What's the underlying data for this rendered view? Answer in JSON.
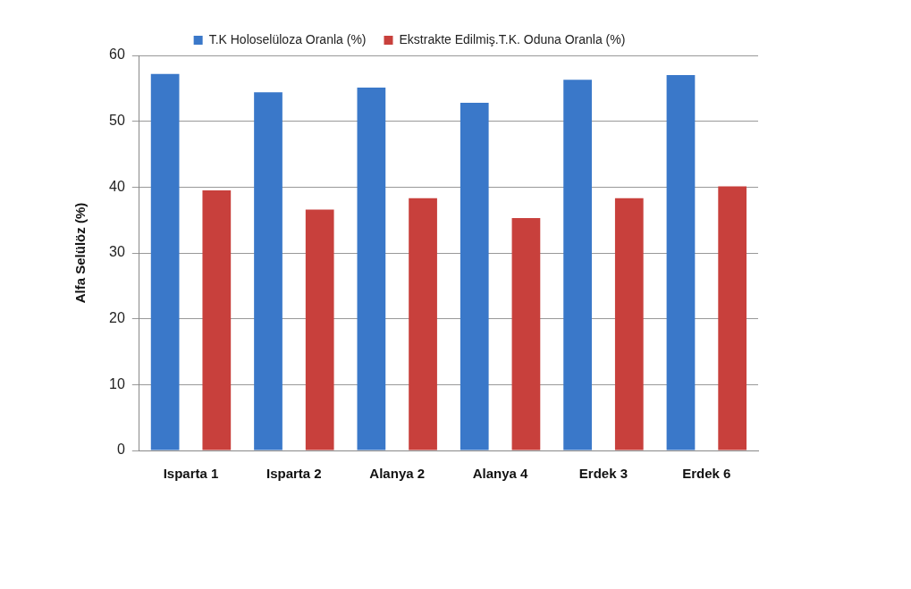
{
  "chart_data": {
    "type": "bar",
    "ylabel": "Alfa Selülöz (%)",
    "categories": [
      "Isparta 1",
      "Isparta 2",
      "Alanya 2",
      "Alanya 4",
      "Erdek 3",
      "Erdek 6"
    ],
    "series": [
      {
        "name": "T.K Holoselüloza Oranla (%)",
        "color": "#3a78c9",
        "values": [
          57.2,
          54.4,
          55.1,
          52.8,
          56.3,
          57.0
        ]
      },
      {
        "name": "Ekstrakte Edilmiş.T.K. Oduna Oranla (%)",
        "color": "#c8403c",
        "values": [
          39.5,
          36.6,
          38.3,
          35.3,
          38.3,
          40.1
        ]
      }
    ],
    "ylim": [
      0,
      60
    ],
    "yticks": [
      0,
      10,
      20,
      30,
      40,
      50,
      60
    ],
    "grid": "y",
    "legend": "top"
  }
}
